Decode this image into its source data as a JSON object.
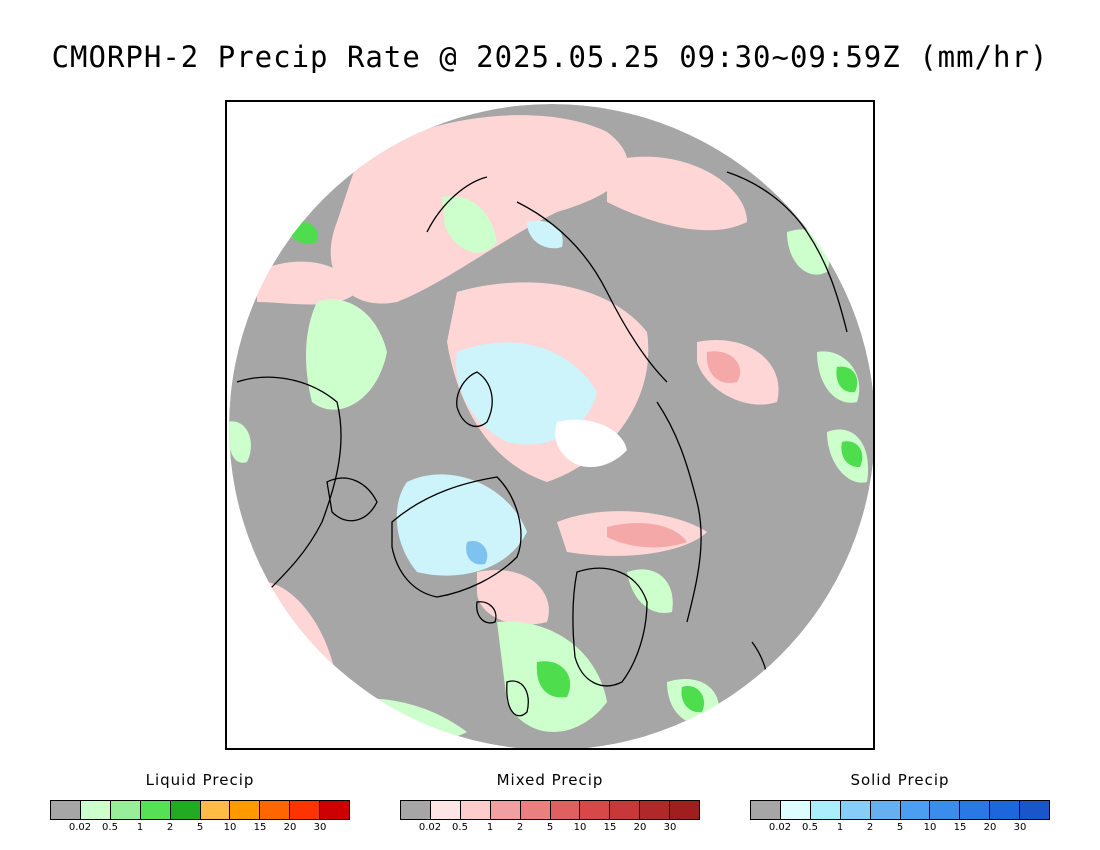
{
  "title": "CMORPH-2 Precip Rate @ 2025.05.25 09:30~09:59Z (mm/hr)",
  "map": {
    "projection": "north-polar-stereographic",
    "colors": {
      "no_precip": "#a6a6a6",
      "coastline": "#000000",
      "liquid_light": "#ccffcc",
      "liquid_medium": "#99ee99",
      "liquid_heavy": "#4ddd4d",
      "liquid_very_heavy": "#22aa22",
      "mixed_light": "#ffd6d6",
      "mixed_medium": "#f5a8a8",
      "solid_light": "#ccf4fa",
      "solid_medium": "#7ec3f0",
      "polar_gap": "#ffffff"
    }
  },
  "legends": [
    {
      "title": "Liquid Precip",
      "colors": [
        "#a6a6a6",
        "#ccffcc",
        "#99ee99",
        "#55e055",
        "#22aa22",
        "#ffbb44",
        "#ff9900",
        "#ff6600",
        "#ff3300",
        "#cc0000"
      ],
      "ticks": [
        "0.02",
        "0.5",
        "1",
        "2",
        "5",
        "10",
        "15",
        "20",
        "30"
      ]
    },
    {
      "title": "Mixed Precip",
      "colors": [
        "#a6a6a6",
        "#ffe6e6",
        "#ffcccc",
        "#f0a0a0",
        "#e88080",
        "#e06060",
        "#d84848",
        "#c83838",
        "#b02828",
        "#a01e1e"
      ],
      "ticks": [
        "0.02",
        "0.5",
        "1",
        "2",
        "5",
        "10",
        "15",
        "20",
        "30"
      ]
    },
    {
      "title": "Solid Precip",
      "colors": [
        "#a6a6a6",
        "#ddffff",
        "#aaeeff",
        "#88ccf8",
        "#66b0f0",
        "#4c9ef0",
        "#3a8ced",
        "#2a78e6",
        "#1e66dd",
        "#1a55cc"
      ],
      "ticks": [
        "0.02",
        "0.5",
        "1",
        "2",
        "5",
        "10",
        "15",
        "20",
        "30"
      ]
    }
  ]
}
